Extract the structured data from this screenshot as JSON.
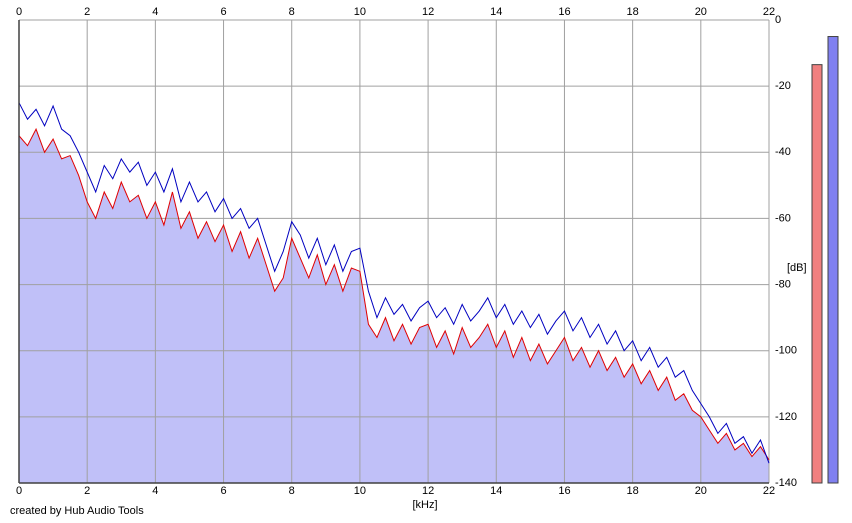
{
  "chart_data": {
    "type": "spectrum",
    "x_label": "[kHz]",
    "y_label": "[dB]",
    "footer": "created by Hub Audio Tools",
    "xlim": [
      0,
      22
    ],
    "xticks": [
      0,
      2,
      4,
      6,
      8,
      10,
      12,
      14,
      16,
      18,
      20,
      22
    ],
    "ylim": [
      -140,
      0
    ],
    "yticks": [
      0,
      -20,
      -40,
      -60,
      -80,
      -100,
      -120,
      -140
    ],
    "grid": true,
    "fill_color": "#c0c0f8",
    "x": [
      0,
      0.25,
      0.5,
      0.75,
      1,
      1.25,
      1.5,
      1.75,
      2,
      2.25,
      2.5,
      2.75,
      3,
      3.25,
      3.5,
      3.75,
      4,
      4.25,
      4.5,
      4.75,
      5,
      5.25,
      5.5,
      5.75,
      6,
      6.25,
      6.5,
      6.75,
      7,
      7.25,
      7.5,
      7.75,
      8,
      8.25,
      8.5,
      8.75,
      9,
      9.25,
      9.5,
      9.75,
      10,
      10.25,
      10.5,
      10.75,
      11,
      11.25,
      11.5,
      11.75,
      12,
      12.25,
      12.5,
      12.75,
      13,
      13.25,
      13.5,
      13.75,
      14,
      14.25,
      14.5,
      14.75,
      15,
      15.25,
      15.5,
      15.75,
      16,
      16.25,
      16.5,
      16.75,
      17,
      17.25,
      17.5,
      17.75,
      18,
      18.25,
      18.5,
      18.75,
      19,
      19.25,
      19.5,
      19.75,
      20,
      20.25,
      20.5,
      20.75,
      21,
      21.25,
      21.5,
      21.75,
      22
    ],
    "series": [
      {
        "color": "#e00000",
        "values": [
          -35,
          -38,
          -33,
          -40,
          -36,
          -42,
          -41,
          -47,
          -55,
          -60,
          -52,
          -57,
          -49,
          -55,
          -53,
          -60,
          -55,
          -62,
          -52,
          -63,
          -58,
          -66,
          -61,
          -67,
          -62,
          -70,
          -64,
          -72,
          -66,
          -74,
          -82,
          -78,
          -66,
          -72,
          -78,
          -71,
          -80,
          -74,
          -82,
          -75,
          -76,
          -92,
          -96,
          -90,
          -97,
          -92,
          -98,
          -93,
          -92,
          -99,
          -94,
          -101,
          -93,
          -99,
          -96,
          -92,
          -99,
          -94,
          -102,
          -96,
          -103,
          -98,
          -104,
          -100,
          -96,
          -103,
          -99,
          -105,
          -100,
          -106,
          -102,
          -108,
          -104,
          -110,
          -106,
          -112,
          -108,
          -115,
          -113,
          -118,
          -120,
          -124,
          -128,
          -125,
          -130,
          -128,
          -132,
          -129,
          -133
        ]
      },
      {
        "color": "#0000c0",
        "values": [
          -25,
          -30,
          -27,
          -32,
          -26,
          -33,
          -35,
          -40,
          -46,
          -52,
          -44,
          -48,
          -42,
          -46,
          -43,
          -50,
          -46,
          -52,
          -45,
          -55,
          -49,
          -55,
          -52,
          -58,
          -54,
          -60,
          -57,
          -63,
          -60,
          -68,
          -76,
          -70,
          -61,
          -65,
          -72,
          -66,
          -74,
          -68,
          -76,
          -70,
          -69,
          -82,
          -90,
          -84,
          -89,
          -86,
          -91,
          -87,
          -85,
          -90,
          -87,
          -92,
          -86,
          -91,
          -88,
          -84,
          -90,
          -86,
          -92,
          -88,
          -93,
          -89,
          -95,
          -91,
          -88,
          -94,
          -90,
          -96,
          -92,
          -98,
          -94,
          -100,
          -97,
          -103,
          -99,
          -105,
          -102,
          -108,
          -106,
          -112,
          -116,
          -120,
          -125,
          -122,
          -128,
          -126,
          -131,
          -127,
          -134
        ]
      }
    ],
    "meters": [
      {
        "color": "#f08080",
        "value": -13.5
      },
      {
        "color": "#8080f0",
        "value": -5
      }
    ]
  }
}
